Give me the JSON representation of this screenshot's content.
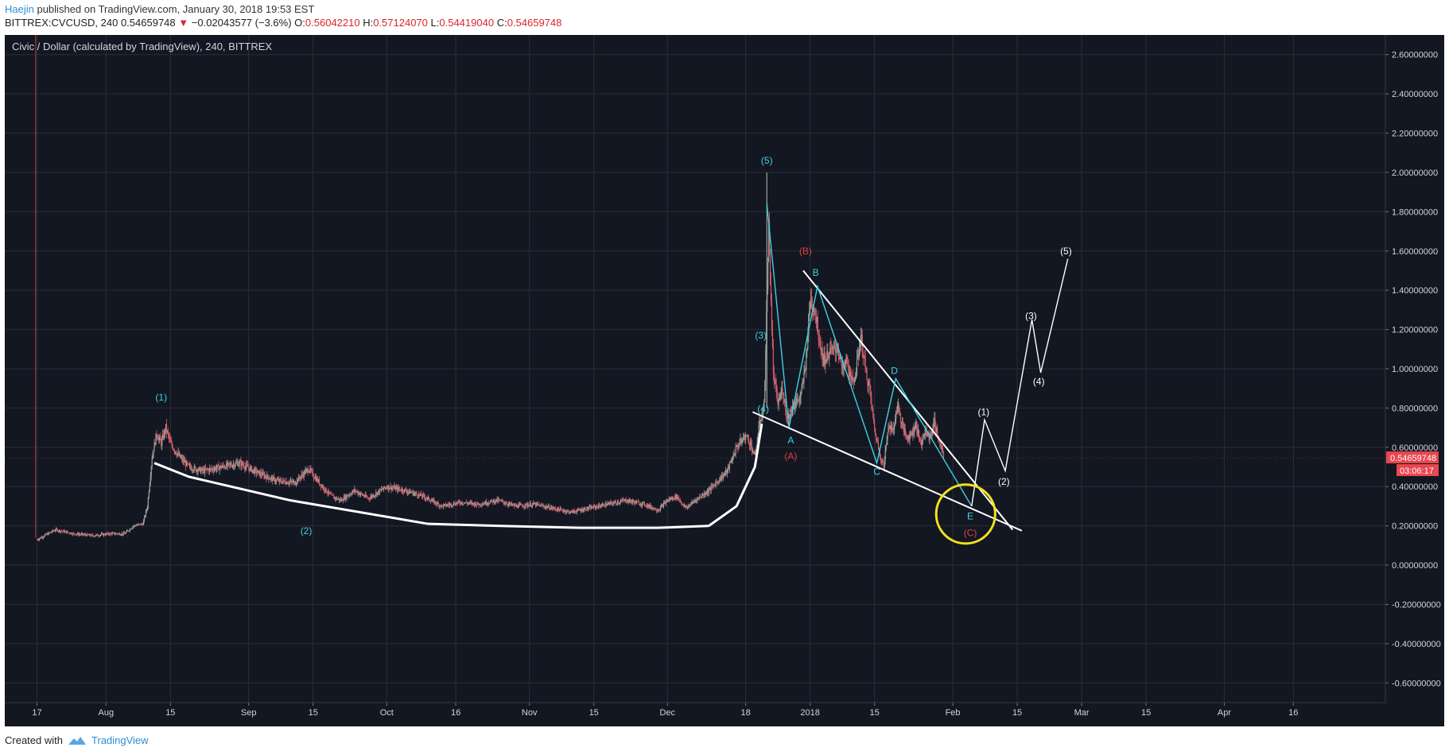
{
  "header": {
    "author": "Haejin",
    "published_text": " published on TradingView.com, January 30, 2018 19:53 EST",
    "symbol_line": "BITTREX:CVCUSD, 240",
    "last": "0.54659748",
    "change_arrow": "▼",
    "change": "−0.02043577 (−3.6%)",
    "ohlc": [
      {
        "k": "O:",
        "v": "0.56042210"
      },
      {
        "k": "H:",
        "v": "0.57124070"
      },
      {
        "k": "L:",
        "v": "0.54419040"
      },
      {
        "k": "C:",
        "v": "0.54659748"
      }
    ]
  },
  "chart_title": "Civic / Dollar (calculated by TradingView), 240, BITTREX",
  "footer": {
    "created_with": "Created with",
    "brand": "TradingView"
  },
  "colors": {
    "background": "#131722",
    "grid": "#2a2e39",
    "text": "#d1d4dc",
    "up": "#9aa39a",
    "down": "#d85b6a",
    "wave_cyan": "#3fd2e0",
    "wave_red": "#e0413b",
    "trend_white": "#ffffff",
    "highlight_circle": "#f3e21a",
    "price_label_bg": "#e8474f"
  },
  "chart_data": {
    "type": "candlestick",
    "ylim": [
      -0.7,
      2.7
    ],
    "y_ticks": [
      "2.60000000",
      "2.40000000",
      "2.20000000",
      "2.00000000",
      "1.80000000",
      "1.60000000",
      "1.40000000",
      "1.20000000",
      "1.00000000",
      "0.80000000",
      "0.60000000",
      "0.40000000",
      "0.20000000",
      "0.00000000",
      "-0.20000000",
      "-0.40000000",
      "-0.60000000"
    ],
    "y_tick_values": [
      2.6,
      2.4,
      2.2,
      2.0,
      1.8,
      1.6,
      1.4,
      1.2,
      1.0,
      0.8,
      0.6,
      0.4,
      0.2,
      0.0,
      -0.2,
      -0.4,
      -0.6
    ],
    "x_ticks": [
      {
        "label": "17",
        "day": 0
      },
      {
        "label": "Aug",
        "day": 15
      },
      {
        "label": "15",
        "day": 29
      },
      {
        "label": "Sep",
        "day": 46
      },
      {
        "label": "15",
        "day": 60
      },
      {
        "label": "Oct",
        "day": 76
      },
      {
        "label": "16",
        "day": 91
      },
      {
        "label": "Nov",
        "day": 107
      },
      {
        "label": "15",
        "day": 121
      },
      {
        "label": "Dec",
        "day": 137
      },
      {
        "label": "18",
        "day": 154
      },
      {
        "label": "2018",
        "day": 168
      },
      {
        "label": "15",
        "day": 182
      },
      {
        "label": "Feb",
        "day": 199
      },
      {
        "label": "15",
        "day": 213
      },
      {
        "label": "Mar",
        "day": 227
      },
      {
        "label": "15",
        "day": 241
      },
      {
        "label": "Apr",
        "day": 258
      },
      {
        "label": "16",
        "day": 273
      }
    ],
    "x_domain_days": [
      -7,
      293
    ],
    "last_price": 0.54659748,
    "last_price_label": "0.54659748",
    "countdown_label": "03:06:17",
    "price_path": [
      [
        0,
        0.13
      ],
      [
        4,
        0.18
      ],
      [
        8,
        0.16
      ],
      [
        12,
        0.15
      ],
      [
        16,
        0.16
      ],
      [
        19,
        0.16
      ],
      [
        21,
        0.2
      ],
      [
        23,
        0.21
      ],
      [
        24,
        0.3
      ],
      [
        25,
        0.55
      ],
      [
        26,
        0.67
      ],
      [
        27,
        0.62
      ],
      [
        28,
        0.7
      ],
      [
        29,
        0.62
      ],
      [
        31,
        0.55
      ],
      [
        33,
        0.5
      ],
      [
        36,
        0.48
      ],
      [
        40,
        0.5
      ],
      [
        44,
        0.52
      ],
      [
        48,
        0.47
      ],
      [
        52,
        0.43
      ],
      [
        56,
        0.42
      ],
      [
        59,
        0.49
      ],
      [
        62,
        0.4
      ],
      [
        64,
        0.35
      ],
      [
        66,
        0.33
      ],
      [
        69,
        0.38
      ],
      [
        72,
        0.34
      ],
      [
        76,
        0.4
      ],
      [
        80,
        0.38
      ],
      [
        84,
        0.35
      ],
      [
        88,
        0.3
      ],
      [
        92,
        0.32
      ],
      [
        96,
        0.31
      ],
      [
        100,
        0.33
      ],
      [
        104,
        0.3
      ],
      [
        108,
        0.31
      ],
      [
        112,
        0.29
      ],
      [
        116,
        0.27
      ],
      [
        120,
        0.29
      ],
      [
        124,
        0.31
      ],
      [
        128,
        0.33
      ],
      [
        132,
        0.31
      ],
      [
        135,
        0.28
      ],
      [
        137,
        0.33
      ],
      [
        139,
        0.35
      ],
      [
        141,
        0.29
      ],
      [
        143,
        0.33
      ],
      [
        146,
        0.38
      ],
      [
        148,
        0.43
      ],
      [
        150,
        0.48
      ],
      [
        152,
        0.6
      ],
      [
        154,
        0.66
      ],
      [
        155,
        0.62
      ],
      [
        156,
        0.55
      ],
      [
        157,
        0.72
      ],
      [
        158,
        0.81
      ],
      [
        159,
        1.72
      ],
      [
        160,
        0.97
      ],
      [
        161,
        0.82
      ],
      [
        162,
        0.9
      ],
      [
        163,
        0.74
      ],
      [
        164,
        0.8
      ],
      [
        166,
        0.86
      ],
      [
        167,
        1.02
      ],
      [
        168,
        1.35
      ],
      [
        169,
        1.31
      ],
      [
        170,
        1.15
      ],
      [
        171,
        1.04
      ],
      [
        172,
        1.08
      ],
      [
        174,
        1.11
      ],
      [
        175,
        0.99
      ],
      [
        176,
        1.05
      ],
      [
        177,
        0.92
      ],
      [
        178,
        0.99
      ],
      [
        179,
        1.17
      ],
      [
        180,
        1.0
      ],
      [
        181,
        0.88
      ],
      [
        182,
        0.69
      ],
      [
        183,
        0.58
      ],
      [
        184,
        0.5
      ],
      [
        185,
        0.72
      ],
      [
        186,
        0.68
      ],
      [
        187,
        0.82
      ],
      [
        188,
        0.71
      ],
      [
        189,
        0.65
      ],
      [
        190,
        0.67
      ],
      [
        191,
        0.72
      ],
      [
        192,
        0.62
      ],
      [
        193,
        0.68
      ],
      [
        194,
        0.65
      ],
      [
        195,
        0.73
      ],
      [
        196,
        0.63
      ],
      [
        197,
        0.55
      ]
    ],
    "wave_labels": [
      {
        "text": "(1)",
        "day": 27,
        "price": 0.855,
        "color": "cyan"
      },
      {
        "text": "(2)",
        "day": 58.5,
        "price": 0.175,
        "color": "cyan"
      },
      {
        "text": "(3)",
        "day": 157.3,
        "price": 1.17,
        "color": "cyan"
      },
      {
        "text": "(4)",
        "day": 157.8,
        "price": 0.795,
        "color": "cyan"
      },
      {
        "text": "(5)",
        "day": 158.6,
        "price": 2.06,
        "color": "cyan"
      },
      {
        "text": "A",
        "day": 163.8,
        "price": 0.635,
        "color": "cyan"
      },
      {
        "text": "(A)",
        "day": 163.8,
        "price": 0.555,
        "color": "red"
      },
      {
        "text": "(B)",
        "day": 167,
        "price": 1.6,
        "color": "red"
      },
      {
        "text": "B",
        "day": 169.2,
        "price": 1.49,
        "color": "cyan"
      },
      {
        "text": "C",
        "day": 182.5,
        "price": 0.475,
        "color": "cyan"
      },
      {
        "text": "D",
        "day": 186.3,
        "price": 0.99,
        "color": "cyan"
      },
      {
        "text": "E",
        "day": 202.8,
        "price": 0.25,
        "color": "cyan"
      },
      {
        "text": "(C)",
        "day": 202.8,
        "price": 0.165,
        "color": "red"
      },
      {
        "text": "(1)",
        "day": 205.7,
        "price": 0.78,
        "color": "white"
      },
      {
        "text": "(2)",
        "day": 210.1,
        "price": 0.425,
        "color": "white"
      },
      {
        "text": "(3)",
        "day": 216,
        "price": 1.27,
        "color": "white"
      },
      {
        "text": "(4)",
        "day": 217.7,
        "price": 0.935,
        "color": "white"
      },
      {
        "text": "(5)",
        "day": 223.6,
        "price": 1.6,
        "color": "white"
      }
    ],
    "wave_path_cyan": [
      [
        158.6,
        1.84
      ],
      [
        163.4,
        0.7
      ],
      [
        169.6,
        1.42
      ],
      [
        182.5,
        0.52
      ],
      [
        186.6,
        0.95
      ],
      [
        203.1,
        0.3
      ]
    ],
    "wave_path_white": [
      [
        203.1,
        0.3
      ],
      [
        205.9,
        0.74
      ],
      [
        210.4,
        0.48
      ],
      [
        216.2,
        1.25
      ],
      [
        218.1,
        0.98
      ],
      [
        224,
        1.56
      ]
    ],
    "trendlines": [
      {
        "from": [
          25.5,
          0.52
        ],
        "to": [
          33,
          0.45
        ],
        "curve": [
          [
            33,
            0.45
          ],
          [
            55,
            0.33
          ],
          [
            85,
            0.21
          ],
          [
            100,
            0.2
          ],
          [
            118,
            0.19
          ],
          [
            135,
            0.19
          ],
          [
            146,
            0.2
          ],
          [
            152,
            0.3
          ],
          [
            156,
            0.5
          ],
          [
            157.5,
            0.72
          ]
        ]
      },
      {
        "from": [
          166.5,
          1.5
        ],
        "to": [
          212,
          0.18
        ]
      },
      {
        "from": [
          155.5,
          0.78
        ],
        "to": [
          214,
          0.175
        ]
      }
    ],
    "circle": {
      "day": 201.8,
      "price": 0.26,
      "radius_price": 0.15
    }
  }
}
